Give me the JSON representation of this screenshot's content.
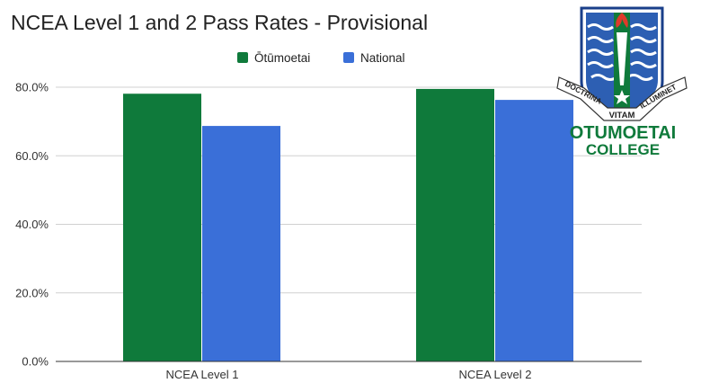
{
  "chart_data": {
    "type": "bar",
    "title": "NCEA Level 1 and 2 Pass Rates - Provisional",
    "xlabel": "",
    "ylabel": "",
    "categories": [
      "NCEA Level 1",
      "NCEA Level 2"
    ],
    "series": [
      {
        "name": "Ōtūmoetai",
        "values": [
          78.1,
          79.5
        ],
        "color": "#0f7a3b"
      },
      {
        "name": "National",
        "values": [
          68.7,
          76.3
        ],
        "color": "#3a6fd8"
      }
    ],
    "ylim": [
      0,
      80
    ],
    "yticks": [
      0,
      20,
      40,
      60,
      80
    ],
    "ytick_labels": [
      "0.0%",
      "20.0%",
      "40.0%",
      "60.0%",
      "80.0%"
    ],
    "grid": true,
    "legend_position": "top-center"
  },
  "logo": {
    "name_line1": "OTUMOETAI",
    "name_line2": "COLLEGE",
    "motto_left": "DOCTRINA",
    "motto_right": "ILLUMINET",
    "motto_bottom": "VITAM",
    "color": "#0f7a3b"
  }
}
